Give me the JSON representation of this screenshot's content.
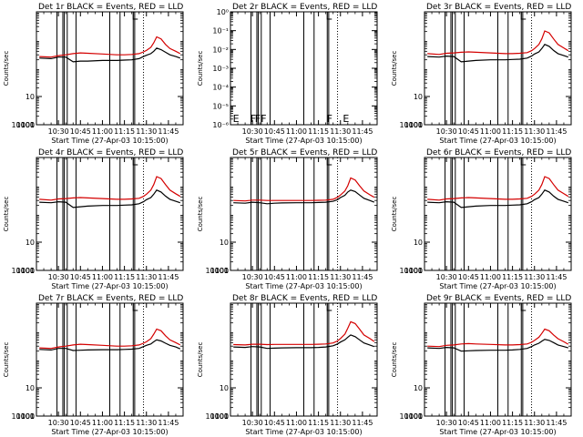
{
  "common": {
    "title_suffix": "BLACK = Events,  RED = LLD",
    "xlabel": "Start Time (27-Apr-03 10:15:00)",
    "ylabel": "Counts/sec",
    "x_ticks": [
      "10:30",
      "10:45",
      "11:00",
      "11:15",
      "11:30",
      "11:45"
    ],
    "xlim": [
      "10:15",
      "11:55"
    ],
    "y_scale": "log",
    "colors": {
      "events": "#000000",
      "lld": "#d40000"
    }
  },
  "chart_data": [
    {
      "type": "line",
      "title": "Det 1r BLACK = Events,  RED = LLD",
      "ylim": [
        1,
        10000
      ],
      "y_ticks": [
        "1",
        "10",
        "100",
        "1000",
        "10000"
      ],
      "x": [
        "10:17",
        "10:25",
        "10:30",
        "10:35",
        "10:40",
        "10:45",
        "10:50",
        "11:00",
        "11:10",
        "11:15",
        "11:20",
        "11:25",
        "11:28",
        "11:30",
        "11:33",
        "11:35",
        "11:37",
        "11:40",
        "11:43",
        "11:46",
        "11:50",
        "11:53"
      ],
      "series": [
        {
          "name": "BLACK = Events",
          "color": "#000000",
          "values": [
            230,
            220,
            250,
            250,
            170,
            180,
            180,
            190,
            190,
            195,
            200,
            220,
            260,
            290,
            330,
            400,
            520,
            460,
            370,
            300,
            260,
            230
          ]
        },
        {
          "name": "RED = LLD",
          "color": "#d40000",
          "values": [
            260,
            250,
            280,
            300,
            330,
            350,
            340,
            320,
            300,
            300,
            310,
            330,
            380,
            430,
            550,
            800,
            1300,
            1100,
            700,
            500,
            400,
            330
          ]
        }
      ],
      "vlines": [
        "10:29",
        "10:33",
        "10:34",
        "10:36",
        "10:42",
        "11:05",
        "11:12",
        "11:21",
        "11:22"
      ],
      "dotted_vlines": [
        "11:28"
      ],
      "top_markers": [
        "11:21"
      ],
      "flags": []
    },
    {
      "type": "line",
      "title": "Det 2r BLACK = Events,  RED = LLD",
      "ylim": [
        1e-06,
        1
      ],
      "y_ticks": [
        "10⁻⁶",
        "10⁻⁵",
        "10⁻⁴",
        "10⁻³",
        "10⁻²",
        "10⁻¹",
        "10⁰"
      ],
      "x": [],
      "series": [],
      "vlines": [
        "10:29",
        "10:33",
        "10:34",
        "10:36",
        "10:42",
        "11:05",
        "11:12",
        "11:21",
        "11:22"
      ],
      "dotted_vlines": [
        "11:28"
      ],
      "top_markers": [
        "11:21"
      ],
      "flags": [
        {
          "x": "10:16",
          "label": "E"
        },
        {
          "x": "10:28",
          "label": "F"
        },
        {
          "x": "10:31",
          "label": "F"
        },
        {
          "x": "10:35",
          "label": "F"
        },
        {
          "x": "11:20",
          "label": "F"
        },
        {
          "x": "11:31",
          "label": "E"
        }
      ]
    },
    {
      "type": "line",
      "title": "Det 3r BLACK = Events,  RED = LLD",
      "ylim": [
        1,
        10000
      ],
      "y_ticks": [
        "1",
        "10",
        "100",
        "1000",
        "10000"
      ],
      "x": [
        "10:17",
        "10:25",
        "10:30",
        "10:35",
        "10:40",
        "10:45",
        "10:50",
        "11:00",
        "11:10",
        "11:15",
        "11:20",
        "11:25",
        "11:28",
        "11:30",
        "11:33",
        "11:35",
        "11:37",
        "11:40",
        "11:43",
        "11:46",
        "11:50",
        "11:53"
      ],
      "series": [
        {
          "name": "BLACK = Events",
          "color": "#000000",
          "values": [
            260,
            250,
            270,
            260,
            170,
            180,
            190,
            200,
            200,
            205,
            210,
            230,
            270,
            320,
            380,
            500,
            700,
            600,
            430,
            330,
            280,
            250
          ]
        },
        {
          "name": "RED = LLD",
          "color": "#d40000",
          "values": [
            330,
            310,
            340,
            350,
            370,
            380,
            370,
            350,
            330,
            330,
            340,
            360,
            420,
            500,
            700,
            1100,
            2100,
            1800,
            1100,
            700,
            520,
            420
          ]
        }
      ],
      "vlines": [
        "10:29",
        "10:33",
        "10:34",
        "10:36",
        "10:42",
        "11:05",
        "11:12",
        "11:21",
        "11:22"
      ],
      "dotted_vlines": [
        "11:28"
      ],
      "top_markers": [
        "11:21"
      ],
      "flags": []
    },
    {
      "type": "line",
      "title": "Det 4r BLACK = Events,  RED = LLD",
      "ylim": [
        1,
        10000
      ],
      "y_ticks": [
        "1",
        "10",
        "100",
        "1000",
        "10000"
      ],
      "x": [
        "10:17",
        "10:25",
        "10:30",
        "10:35",
        "10:40",
        "10:45",
        "10:50",
        "11:00",
        "11:10",
        "11:15",
        "11:20",
        "11:25",
        "11:28",
        "11:30",
        "11:33",
        "11:35",
        "11:37",
        "11:40",
        "11:43",
        "11:46",
        "11:50",
        "11:53"
      ],
      "series": [
        {
          "name": "BLACK = Events",
          "color": "#000000",
          "values": [
            260,
            250,
            270,
            260,
            170,
            180,
            190,
            200,
            200,
            205,
            210,
            230,
            270,
            320,
            380,
            500,
            700,
            600,
            430,
            330,
            280,
            250
          ]
        },
        {
          "name": "RED = LLD",
          "color": "#d40000",
          "values": [
            330,
            310,
            340,
            350,
            370,
            380,
            370,
            350,
            330,
            330,
            340,
            360,
            420,
            500,
            700,
            1100,
            2100,
            1800,
            1100,
            700,
            520,
            420
          ]
        }
      ],
      "vlines": [
        "10:29",
        "10:33",
        "10:34",
        "10:36",
        "10:42",
        "11:05",
        "11:12",
        "11:21",
        "11:22"
      ],
      "dotted_vlines": [
        "11:28"
      ],
      "top_markers": [
        "11:21"
      ],
      "flags": []
    },
    {
      "type": "line",
      "title": "Det 5r BLACK = Events,  RED = LLD",
      "ylim": [
        1,
        10000
      ],
      "y_ticks": [
        "1",
        "10",
        "100",
        "1000",
        "10000"
      ],
      "x": [
        "10:17",
        "10:25",
        "10:30",
        "10:35",
        "10:40",
        "10:45",
        "10:50",
        "11:00",
        "11:10",
        "11:15",
        "11:20",
        "11:25",
        "11:28",
        "11:30",
        "11:33",
        "11:35",
        "11:37",
        "11:40",
        "11:43",
        "11:46",
        "11:50",
        "11:53"
      ],
      "series": [
        {
          "name": "BLACK = Events",
          "color": "#000000",
          "values": [
            250,
            240,
            260,
            250,
            230,
            240,
            245,
            250,
            250,
            255,
            260,
            280,
            320,
            380,
            460,
            600,
            700,
            620,
            470,
            360,
            300,
            260
          ]
        },
        {
          "name": "RED = LLD",
          "color": "#d40000",
          "values": [
            300,
            290,
            310,
            310,
            300,
            300,
            300,
            300,
            300,
            305,
            310,
            330,
            390,
            470,
            650,
            1000,
            1900,
            1600,
            1000,
            650,
            480,
            390
          ]
        }
      ],
      "vlines": [
        "10:29",
        "10:33",
        "10:34",
        "10:36",
        "10:42",
        "11:05",
        "11:12",
        "11:21",
        "11:22"
      ],
      "dotted_vlines": [
        "11:28"
      ],
      "top_markers": [
        "11:21"
      ],
      "flags": []
    },
    {
      "type": "line",
      "title": "Det 6r BLACK = Events,  RED = LLD",
      "ylim": [
        1,
        10000
      ],
      "y_ticks": [
        "1",
        "10",
        "100",
        "1000",
        "10000"
      ],
      "x": [
        "10:17",
        "10:25",
        "10:30",
        "10:35",
        "10:40",
        "10:45",
        "10:50",
        "11:00",
        "11:10",
        "11:15",
        "11:20",
        "11:25",
        "11:28",
        "11:30",
        "11:33",
        "11:35",
        "11:37",
        "11:40",
        "11:43",
        "11:46",
        "11:50",
        "11:53"
      ],
      "series": [
        {
          "name": "BLACK = Events",
          "color": "#000000",
          "values": [
            260,
            250,
            270,
            260,
            170,
            180,
            190,
            200,
            200,
            205,
            210,
            230,
            270,
            320,
            380,
            500,
            700,
            600,
            430,
            330,
            280,
            250
          ]
        },
        {
          "name": "RED = LLD",
          "color": "#d40000",
          "values": [
            330,
            310,
            340,
            350,
            370,
            380,
            370,
            350,
            330,
            330,
            340,
            360,
            420,
            500,
            700,
            1100,
            2100,
            1800,
            1100,
            700,
            520,
            420
          ]
        }
      ],
      "vlines": [
        "10:29",
        "10:33",
        "10:34",
        "10:36",
        "10:42",
        "11:05",
        "11:12",
        "11:21",
        "11:22"
      ],
      "dotted_vlines": [
        "11:28"
      ],
      "top_markers": [
        "11:21"
      ],
      "flags": []
    },
    {
      "type": "line",
      "title": "Det 7r BLACK = Events,  RED = LLD",
      "ylim": [
        1,
        10000
      ],
      "y_ticks": [
        "1",
        "10",
        "100",
        "1000",
        "10000"
      ],
      "x": [
        "10:17",
        "10:25",
        "10:30",
        "10:35",
        "10:40",
        "10:45",
        "10:50",
        "11:00",
        "11:10",
        "11:15",
        "11:20",
        "11:25",
        "11:28",
        "11:30",
        "11:33",
        "11:35",
        "11:37",
        "11:40",
        "11:43",
        "11:46",
        "11:50",
        "11:53"
      ],
      "series": [
        {
          "name": "BLACK = Events",
          "color": "#000000",
          "values": [
            230,
            220,
            250,
            250,
            210,
            215,
            220,
            225,
            225,
            230,
            235,
            250,
            290,
            320,
            360,
            430,
            500,
            460,
            380,
            320,
            280,
            240
          ]
        },
        {
          "name": "RED = LLD",
          "color": "#d40000",
          "values": [
            260,
            250,
            280,
            300,
            330,
            350,
            340,
            320,
            300,
            300,
            310,
            330,
            380,
            430,
            550,
            800,
            1200,
            1050,
            700,
            500,
            400,
            330
          ]
        }
      ],
      "vlines": [
        "10:29",
        "10:33",
        "10:34",
        "10:36",
        "10:42",
        "11:05",
        "11:12",
        "11:21",
        "11:22"
      ],
      "dotted_vlines": [
        "11:28"
      ],
      "top_markers": [
        "11:21"
      ],
      "flags": []
    },
    {
      "type": "line",
      "title": "Det 8r BLACK = Events,  RED = LLD",
      "ylim": [
        1,
        10000
      ],
      "y_ticks": [
        "1",
        "10",
        "100",
        "1000",
        "10000"
      ],
      "x": [
        "10:17",
        "10:25",
        "10:30",
        "10:35",
        "10:40",
        "10:45",
        "10:50",
        "11:00",
        "11:10",
        "11:15",
        "11:20",
        "11:25",
        "11:28",
        "11:30",
        "11:33",
        "11:35",
        "11:37",
        "11:40",
        "11:43",
        "11:46",
        "11:50",
        "11:53"
      ],
      "series": [
        {
          "name": "BLACK = Events",
          "color": "#000000",
          "values": [
            280,
            270,
            290,
            280,
            250,
            255,
            260,
            265,
            265,
            270,
            280,
            310,
            360,
            420,
            500,
            620,
            750,
            650,
            500,
            390,
            330,
            290
          ]
        },
        {
          "name": "RED = LLD",
          "color": "#d40000",
          "values": [
            340,
            330,
            350,
            350,
            340,
            345,
            345,
            345,
            345,
            350,
            360,
            390,
            460,
            560,
            800,
            1300,
            2200,
            1900,
            1200,
            750,
            560,
            440
          ]
        }
      ],
      "vlines": [
        "10:29",
        "10:33",
        "10:34",
        "10:36",
        "10:42",
        "11:05",
        "11:12",
        "11:21",
        "11:22"
      ],
      "dotted_vlines": [
        "11:28"
      ],
      "top_markers": [
        "11:21"
      ],
      "flags": []
    },
    {
      "type": "line",
      "title": "Det 9r BLACK = Events,  RED = LLD",
      "ylim": [
        1,
        10000
      ],
      "y_ticks": [
        "1",
        "10",
        "100",
        "1000",
        "10000"
      ],
      "x": [
        "10:17",
        "10:25",
        "10:30",
        "10:35",
        "10:40",
        "10:45",
        "10:50",
        "11:00",
        "11:10",
        "11:15",
        "11:20",
        "11:25",
        "11:28",
        "11:30",
        "11:33",
        "11:35",
        "11:37",
        "11:40",
        "11:43",
        "11:46",
        "11:50",
        "11:53"
      ],
      "series": [
        {
          "name": "BLACK = Events",
          "color": "#000000",
          "values": [
            260,
            250,
            270,
            260,
            200,
            205,
            210,
            215,
            215,
            220,
            230,
            250,
            290,
            330,
            380,
            450,
            520,
            480,
            400,
            330,
            290,
            260
          ]
        },
        {
          "name": "RED = LLD",
          "color": "#d40000",
          "values": [
            300,
            290,
            320,
            330,
            360,
            370,
            360,
            345,
            330,
            330,
            340,
            360,
            410,
            480,
            620,
            850,
            1200,
            1050,
            750,
            550,
            430,
            350
          ]
        }
      ],
      "vlines": [
        "10:29",
        "10:33",
        "10:34",
        "10:36",
        "10:42",
        "11:05",
        "11:12",
        "11:21",
        "11:22"
      ],
      "dotted_vlines": [
        "11:28"
      ],
      "top_markers": [
        "11:21"
      ],
      "flags": []
    }
  ]
}
